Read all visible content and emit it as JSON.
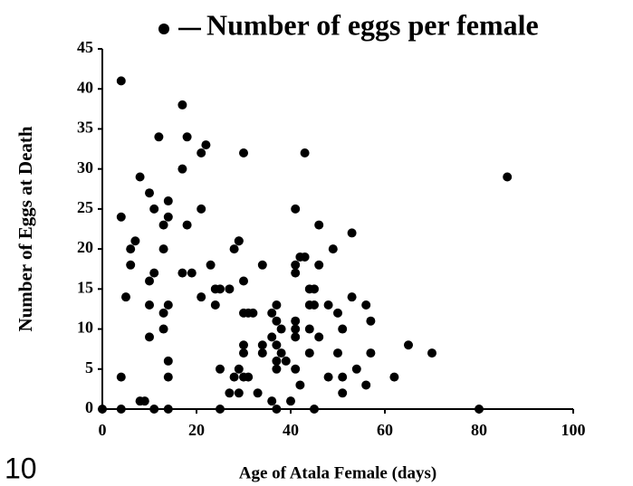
{
  "chart_data": {
    "type": "scatter",
    "x_label": "Age of Atala Female (days)",
    "y_label": "Number of Eggs at Death",
    "annotation": "10",
    "x": [
      0,
      4,
      4,
      4,
      4,
      5,
      6,
      6,
      7,
      8,
      8,
      9,
      10,
      10,
      10,
      10,
      11,
      11,
      11,
      12,
      13,
      13,
      13,
      13,
      14,
      14,
      14,
      14,
      14,
      14,
      17,
      17,
      17,
      18,
      18,
      19,
      21,
      22,
      21,
      21,
      23,
      24,
      24,
      25,
      25,
      25,
      27,
      27,
      28,
      28,
      29,
      29,
      30,
      29,
      29,
      30,
      30,
      30,
      30,
      30,
      31,
      32,
      31,
      33,
      34,
      34,
      34,
      36,
      36,
      36,
      37,
      37,
      37,
      37,
      37,
      37,
      38,
      38,
      39,
      40,
      43,
      41,
      41,
      41,
      41,
      41,
      41,
      41,
      42,
      42,
      43,
      44,
      45,
      44,
      45,
      44,
      44,
      46,
      45,
      46,
      46,
      48,
      48,
      49,
      50,
      50,
      51,
      51,
      51,
      53,
      53,
      54,
      56,
      56,
      57,
      57,
      62,
      65,
      70,
      80,
      86
    ],
    "series": [
      {
        "name": "Number of eggs per female",
        "color": "#000000",
        "values": [
          0,
          41,
          24,
          4,
          0,
          14,
          18,
          20,
          21,
          29,
          1,
          1,
          27,
          16,
          13,
          9,
          25,
          17,
          0,
          34,
          23,
          20,
          12,
          10,
          26,
          24,
          13,
          6,
          4,
          0,
          38,
          30,
          17,
          34,
          23,
          17,
          32,
          33,
          25,
          14,
          18,
          15,
          13,
          15,
          5,
          0,
          15,
          2,
          20,
          4,
          2,
          21,
          16,
          5,
          21,
          4,
          7,
          8,
          32,
          12,
          12,
          12,
          4,
          2,
          18,
          8,
          7,
          12,
          9,
          1,
          13,
          11,
          8,
          6,
          5,
          0,
          10,
          7,
          6,
          1,
          32,
          25,
          18,
          17,
          11,
          10,
          9,
          5,
          3,
          19,
          19,
          15,
          15,
          13,
          13,
          10,
          7,
          9,
          0,
          23,
          18,
          13,
          4,
          20,
          12,
          7,
          10,
          4,
          2,
          22,
          14,
          5,
          13,
          3,
          11,
          7,
          4,
          8,
          7,
          0,
          29
        ]
      }
    ],
    "xlim": [
      0,
      100
    ],
    "xticks": [
      0,
      20,
      40,
      60,
      80,
      100
    ],
    "ylim": [
      0,
      45
    ],
    "yticks": [
      0,
      5,
      10,
      15,
      20,
      25,
      30,
      35,
      40,
      45
    ]
  }
}
